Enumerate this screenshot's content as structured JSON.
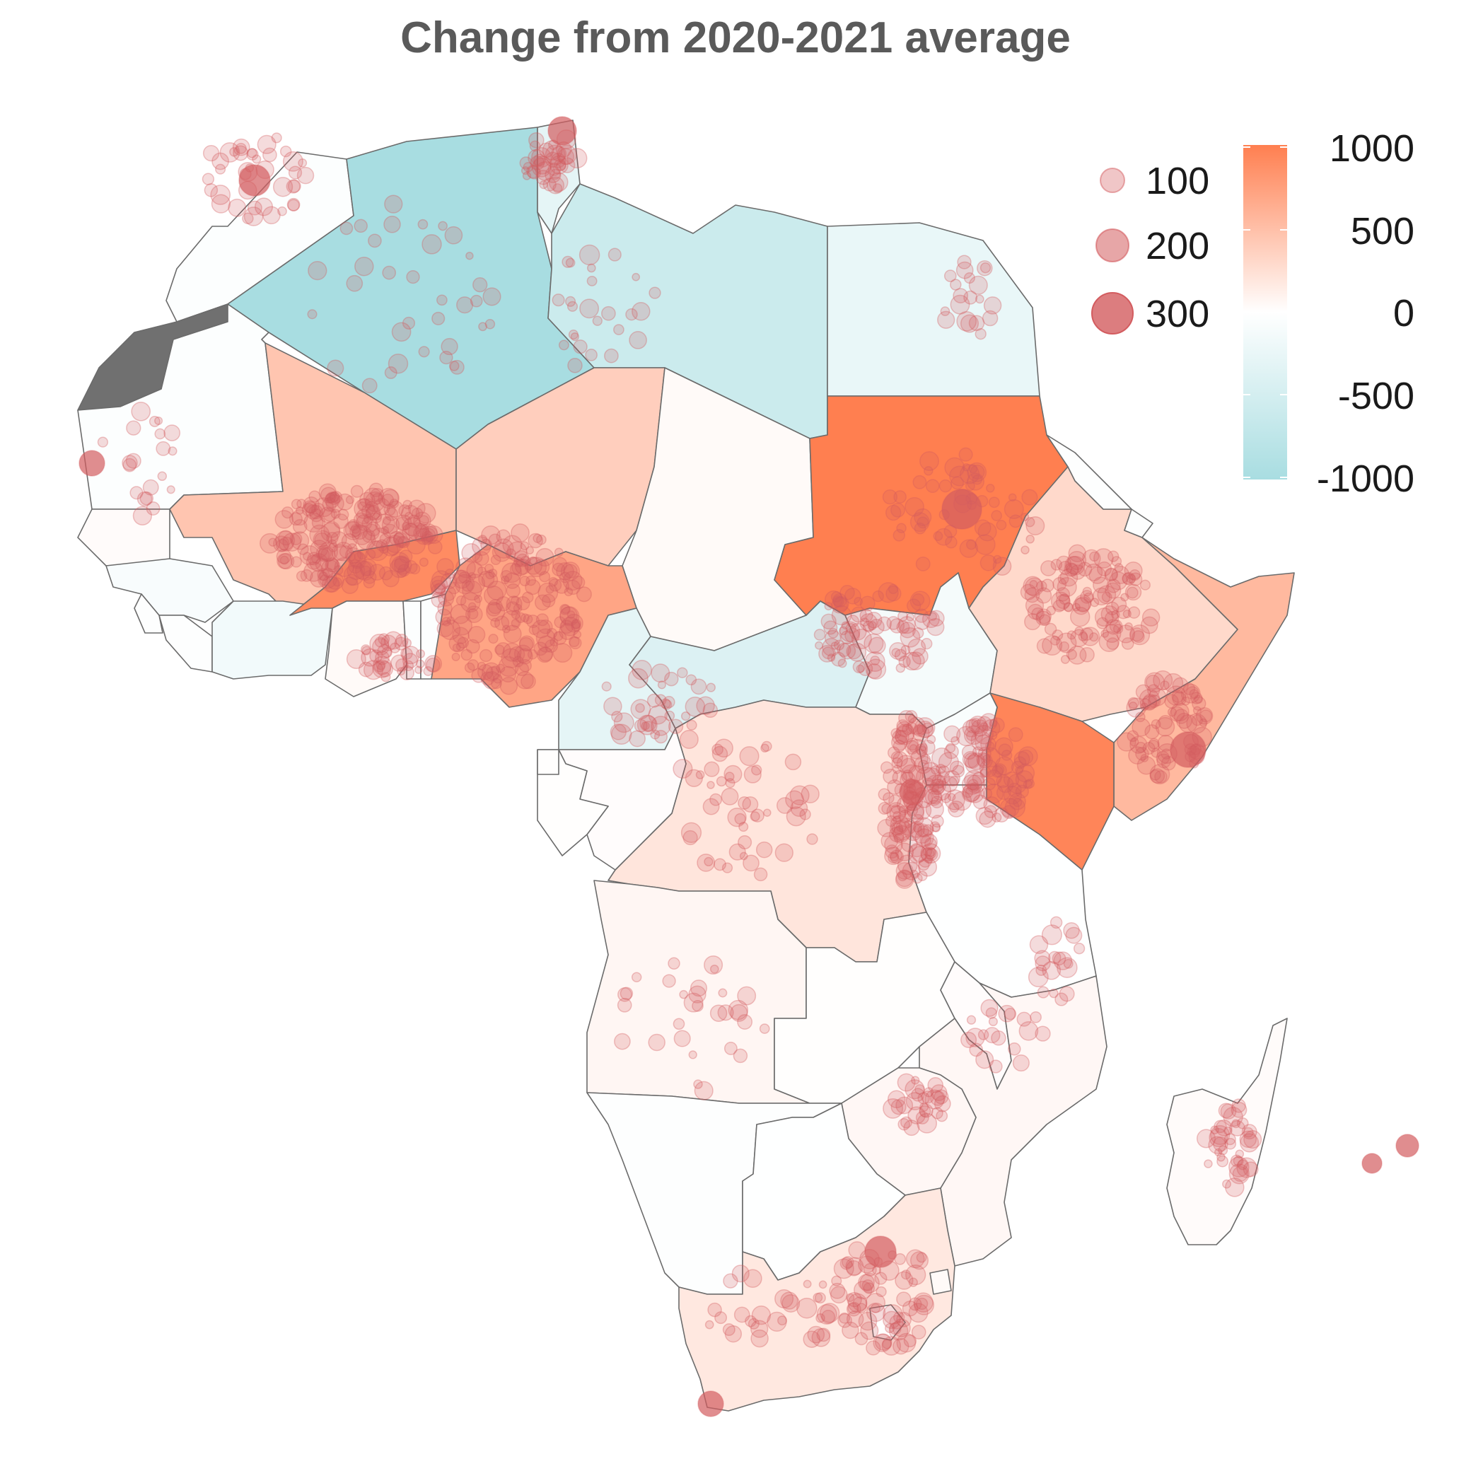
{
  "title": "Change from 2020-2021 average",
  "colors": {
    "neg": "#a8dde1",
    "zero": "#ffffff",
    "pos": "#ff7f50",
    "event": "#d35c5f",
    "disputed": "#707070",
    "border": "#6b6b6b",
    "title": "#5a5a5a"
  },
  "size_legend": {
    "entries": [
      {
        "label": "100",
        "value": 100
      },
      {
        "label": "200",
        "value": 200
      },
      {
        "label": "300",
        "value": 300
      }
    ]
  },
  "color_legend": {
    "labels": [
      "1000",
      "500",
      "0",
      "-500",
      "-1000"
    ],
    "values": [
      1000,
      500,
      0,
      -500,
      -1000
    ],
    "range": [
      -1000,
      1000
    ]
  },
  "countries": [
    {
      "name": "Morocco",
      "change": -40
    },
    {
      "name": "Western Sahara",
      "change": null
    },
    {
      "name": "Algeria",
      "change": -1000
    },
    {
      "name": "Tunisia",
      "change": -300
    },
    {
      "name": "Libya",
      "change": -600
    },
    {
      "name": "Egypt",
      "change": -250
    },
    {
      "name": "Mauritania",
      "change": -30
    },
    {
      "name": "Mali",
      "change": 450
    },
    {
      "name": "Niger",
      "change": 380
    },
    {
      "name": "Chad",
      "change": 40
    },
    {
      "name": "Sudan",
      "change": 1000
    },
    {
      "name": "Senegal",
      "change": 30
    },
    {
      "name": "Guinea",
      "change": -80
    },
    {
      "name": "Sierra Leone",
      "change": -20
    },
    {
      "name": "Liberia",
      "change": -20
    },
    {
      "name": "Cote d'Ivoire",
      "change": -150
    },
    {
      "name": "Burkina Faso",
      "change": 900
    },
    {
      "name": "Ghana",
      "change": 40
    },
    {
      "name": "Togo",
      "change": -30
    },
    {
      "name": "Benin",
      "change": -30
    },
    {
      "name": "Nigeria",
      "change": 700
    },
    {
      "name": "Cameroon",
      "change": -300
    },
    {
      "name": "Central African Republic",
      "change": -400
    },
    {
      "name": "South Sudan",
      "change": -120
    },
    {
      "name": "Ethiopia",
      "change": 300
    },
    {
      "name": "Eritrea",
      "change": -20
    },
    {
      "name": "Djibouti",
      "change": -20
    },
    {
      "name": "Somalia",
      "change": 550
    },
    {
      "name": "Kenya",
      "change": 950
    },
    {
      "name": "Uganda",
      "change": -70
    },
    {
      "name": "DR Congo",
      "change": 200
    },
    {
      "name": "Congo",
      "change": 20
    },
    {
      "name": "Gabon",
      "change": 10
    },
    {
      "name": "Equatorial Guinea",
      "change": 10
    },
    {
      "name": "Tanzania",
      "change": -10
    },
    {
      "name": "Angola",
      "change": 70
    },
    {
      "name": "Zambia",
      "change": 10
    },
    {
      "name": "Malawi",
      "change": 20
    },
    {
      "name": "Mozambique",
      "change": 60
    },
    {
      "name": "Zimbabwe",
      "change": 60
    },
    {
      "name": "Namibia",
      "change": -20
    },
    {
      "name": "Botswana",
      "change": -10
    },
    {
      "name": "South Africa",
      "change": 180
    },
    {
      "name": "Lesotho",
      "change": 0
    },
    {
      "name": "Eswatini",
      "change": 40
    },
    {
      "name": "Madagascar",
      "change": 30
    }
  ]
}
